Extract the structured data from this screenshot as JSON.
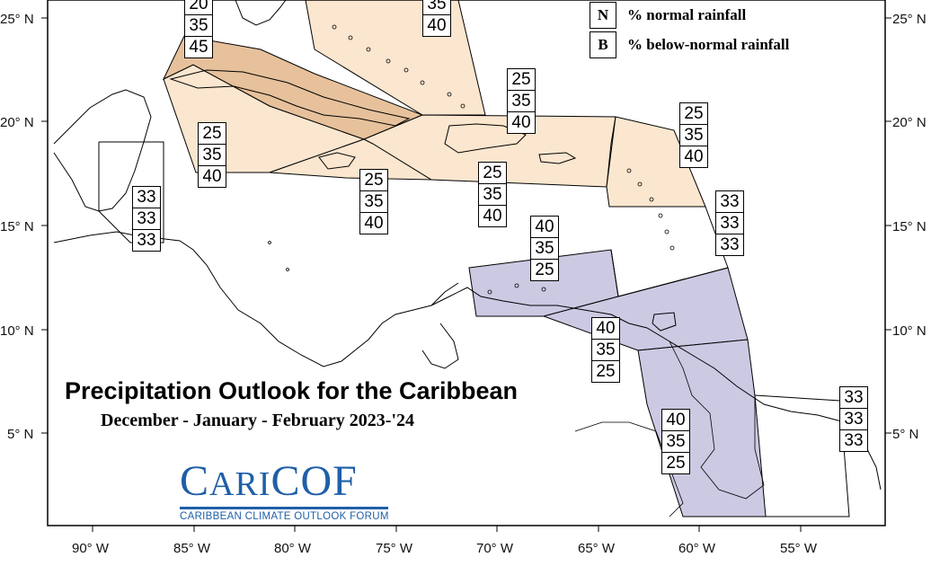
{
  "map": {
    "title": "Precipitation Outlook for the Caribbean",
    "subtitle": "December - January - February 2023-'24",
    "legend": [
      {
        "key": "N",
        "label": "% normal rainfall"
      },
      {
        "key": "B",
        "label": "% below-normal rainfall"
      }
    ],
    "lat_ticks": [
      "25° N",
      "20° N",
      "15° N",
      "10° N",
      "5° N"
    ],
    "lon_ticks": [
      "90° W",
      "85° W",
      "80° W",
      "75° W",
      "70° W",
      "65° W",
      "60° W",
      "55° W"
    ],
    "colors": {
      "light_tan": "#fbe6cf",
      "dark_tan": "#e6c19b",
      "lavender": "#ccc9e3",
      "outline": "#000000"
    },
    "regions": [
      {
        "name": "bahamas-north",
        "values": [
          "35",
          "40"
        ]
      },
      {
        "name": "northwest",
        "values": [
          "20",
          "35",
          "45"
        ]
      },
      {
        "name": "cuba-south",
        "values": [
          "25",
          "35",
          "40"
        ]
      },
      {
        "name": "hispaniola-north",
        "values": [
          "25",
          "35",
          "40"
        ]
      },
      {
        "name": "jamaica",
        "values": [
          "25",
          "35",
          "40"
        ]
      },
      {
        "name": "hispaniola-south",
        "values": [
          "25",
          "35",
          "40"
        ]
      },
      {
        "name": "leeward-islands",
        "values": [
          "25",
          "35",
          "40"
        ]
      },
      {
        "name": "central-america-north",
        "values": [
          "33",
          "33",
          "33"
        ]
      },
      {
        "name": "windward-islands",
        "values": [
          "33",
          "33",
          "33"
        ]
      },
      {
        "name": "abc-islands",
        "values": [
          "40",
          "35",
          "25"
        ]
      },
      {
        "name": "trinidad-tobago",
        "values": [
          "40",
          "35",
          "25"
        ]
      },
      {
        "name": "guyana",
        "values": [
          "40",
          "35",
          "25"
        ]
      },
      {
        "name": "suriname-guiana",
        "values": [
          "33",
          "33",
          "33"
        ]
      }
    ],
    "logo": {
      "word_big_c": "C",
      "word_ari": "ARI",
      "word_cof": "COF",
      "tagline": "CARIBBEAN CLIMATE OUTLOOK FORUM"
    }
  }
}
